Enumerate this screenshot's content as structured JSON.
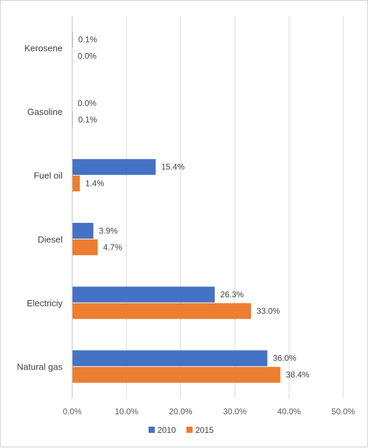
{
  "chart_data": {
    "type": "bar",
    "orientation": "horizontal",
    "categories": [
      "Kerosene",
      "Gasoline",
      "Fuel oil",
      "Diesel",
      "Electriciy",
      "Natural gas"
    ],
    "series": [
      {
        "name": "2010",
        "color": "#4472C4",
        "values": [
          0.1,
          0.0,
          15.4,
          3.9,
          26.3,
          36.0
        ],
        "labels": [
          "0.1%",
          "0.0%",
          "15.4%",
          "3.9%",
          "26.3%",
          "36.0%"
        ]
      },
      {
        "name": "2015",
        "color": "#ED7D31",
        "values": [
          0.0,
          0.1,
          1.4,
          4.7,
          33.0,
          38.4
        ],
        "labels": [
          "0.0%",
          "0.1%",
          "1.4%",
          "4.7%",
          "33.0%",
          "38.4%"
        ]
      }
    ],
    "xlim": [
      0,
      50
    ],
    "xticks": [
      "0.0%",
      "10.0%",
      "20.0%",
      "30.0%",
      "40.0%",
      "50.0%"
    ],
    "grid": true,
    "legend_position": "bottom"
  }
}
